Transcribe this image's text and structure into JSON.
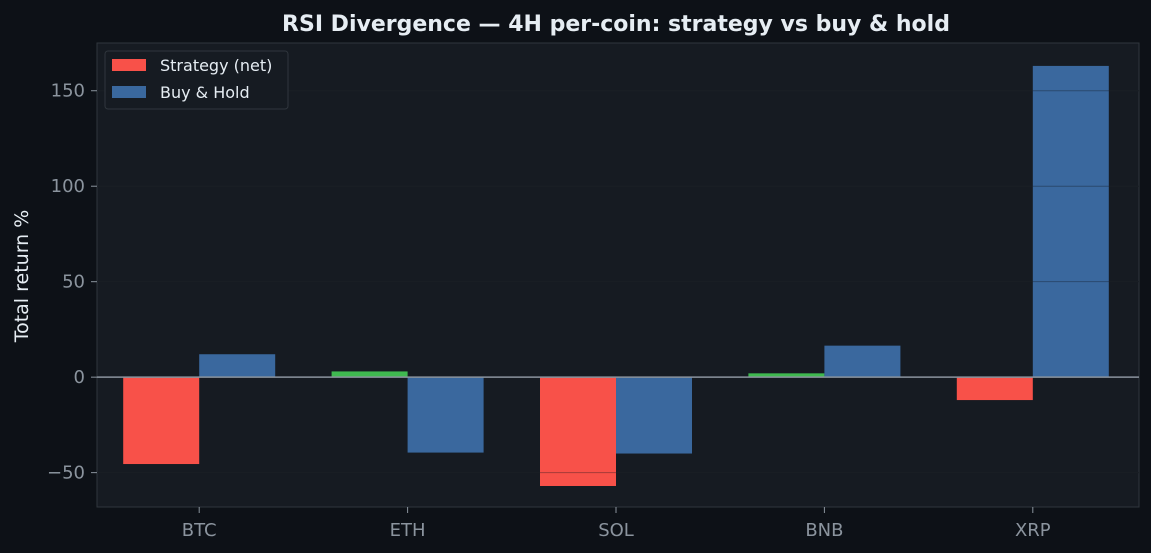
{
  "chart_data": {
    "type": "bar",
    "title": "RSI Divergence — 4H per-coin: strategy vs buy & hold",
    "xlabel": "",
    "ylabel": "Total return %",
    "categories": [
      "BTC",
      "ETH",
      "SOL",
      "BNB",
      "XRP"
    ],
    "series": [
      {
        "name": "Strategy (net)",
        "values": [
          -45.5,
          3.0,
          -57.0,
          2.0,
          -12.0
        ]
      },
      {
        "name": "Buy & Hold",
        "values": [
          12.0,
          -39.5,
          -40.0,
          16.5,
          163.0
        ]
      }
    ],
    "ylim": [
      -68,
      175
    ],
    "yticks": [
      -50,
      0,
      50,
      100,
      150
    ],
    "ytick_labels": [
      "−50",
      "0",
      "50",
      "100",
      "150"
    ],
    "grid": true,
    "legend": "top-left"
  },
  "colors": {
    "background": "#0d1117",
    "plot_background": "#161b22",
    "strategy_negative": "#f85149",
    "strategy_positive": "#3fb950",
    "buy_hold": "#3a689e",
    "zero_line": "#8b949e",
    "grid": "#21262d"
  }
}
